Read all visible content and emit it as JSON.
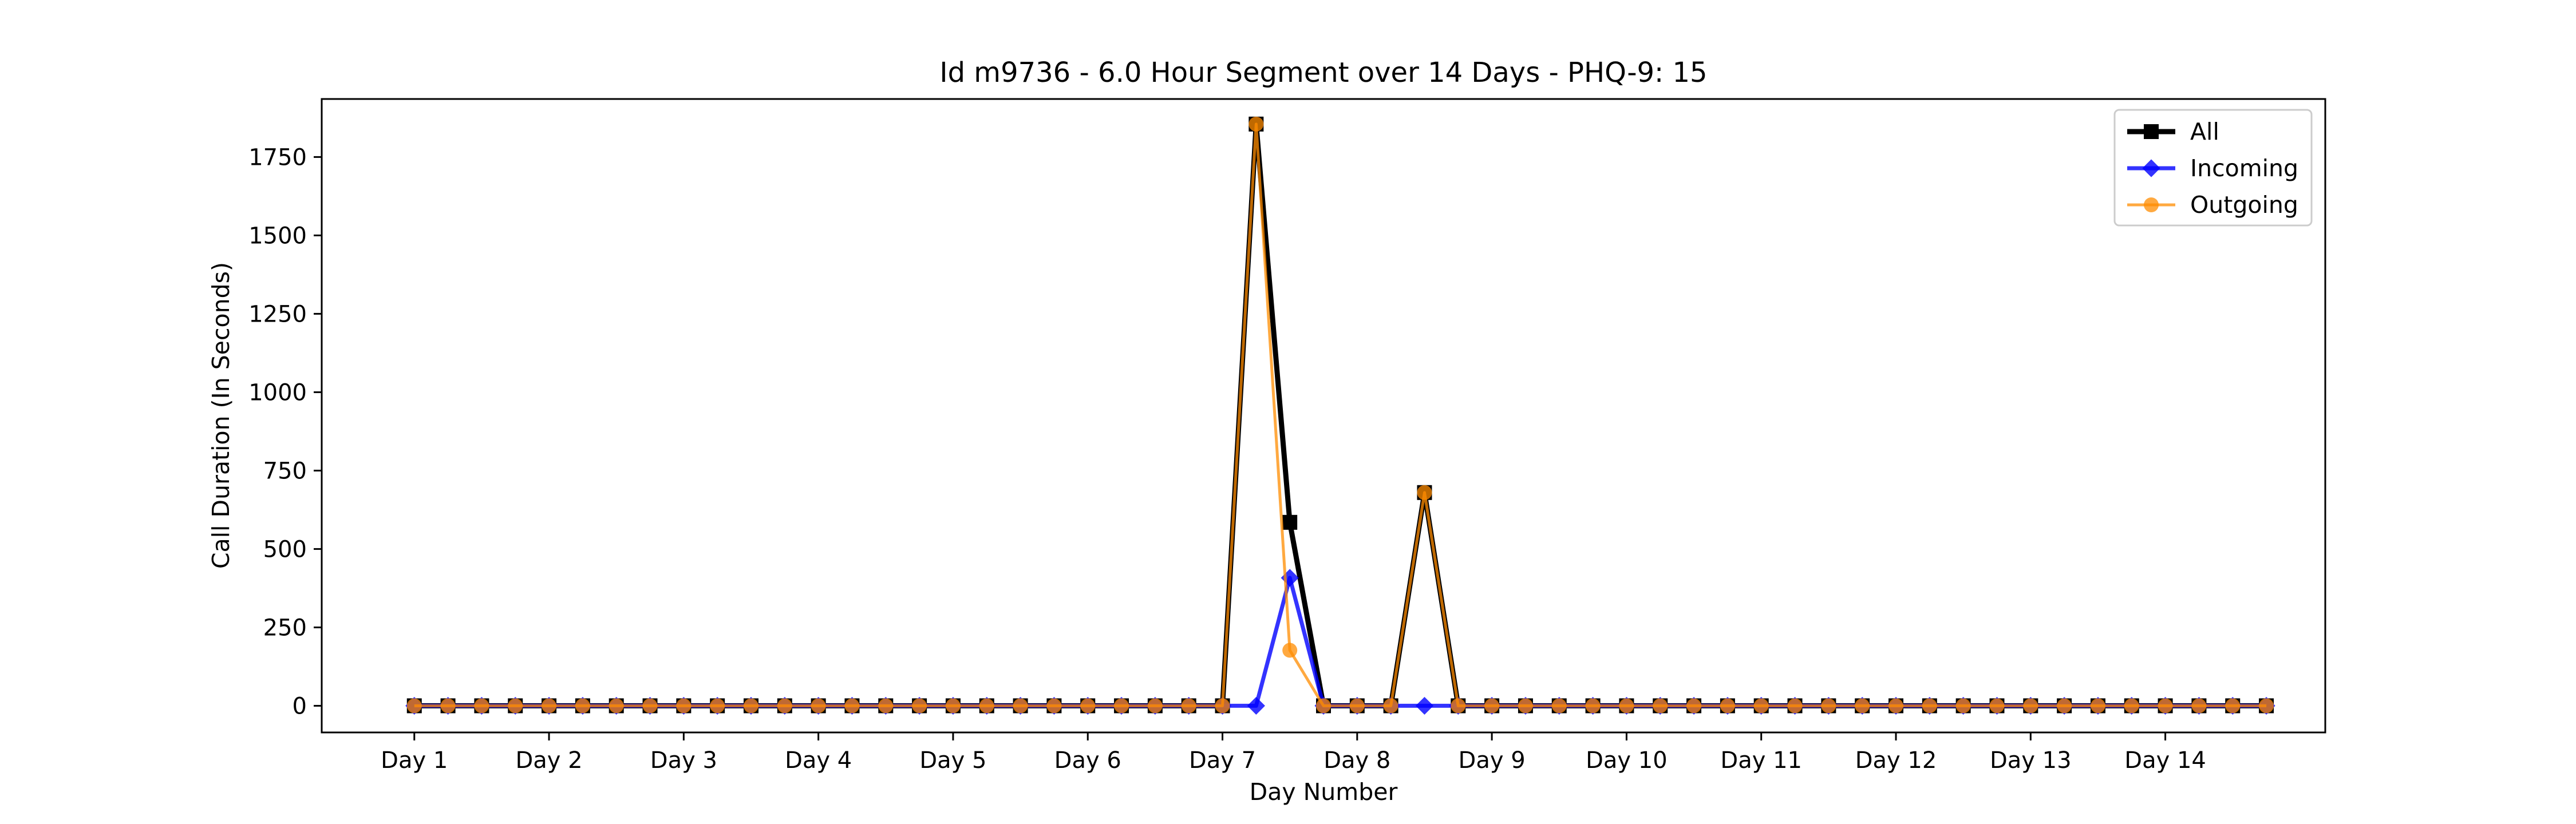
{
  "chart_data": {
    "type": "line",
    "title": "Id m9736 - 6.0 Hour Segment over 14 Days - PHQ-9: 15",
    "xlabel": "Day Number",
    "ylabel": "Call Duration (In Seconds)",
    "ylim": [
      -85,
      1935
    ],
    "yticks": [
      0,
      250,
      500,
      750,
      1000,
      1250,
      1500,
      1750
    ],
    "xlim": [
      -2.75,
      56.75
    ],
    "xticks": [
      0,
      4,
      8,
      12,
      16,
      20,
      24,
      28,
      32,
      36,
      40,
      44,
      48,
      52
    ],
    "xtick_labels": [
      "Day 1",
      "Day 2",
      "Day 3",
      "Day 4",
      "Day 5",
      "Day 6",
      "Day 7",
      "Day 8",
      "Day 9",
      "Day 10",
      "Day 11",
      "Day 12",
      "Day 13",
      "Day 14"
    ],
    "x": [
      0,
      1,
      2,
      3,
      4,
      5,
      6,
      7,
      8,
      9,
      10,
      11,
      12,
      13,
      14,
      15,
      16,
      17,
      18,
      19,
      20,
      21,
      22,
      23,
      24,
      25,
      26,
      27,
      28,
      29,
      30,
      31,
      32,
      33,
      34,
      35,
      36,
      37,
      38,
      39,
      40,
      41,
      42,
      43,
      44,
      45,
      46,
      47,
      48,
      49,
      50,
      51,
      52,
      53,
      54,
      55
    ],
    "legend_position": "top-right",
    "grid": false,
    "series": [
      {
        "name": "All",
        "color": "#000000",
        "marker": "square",
        "values": [
          0,
          0,
          0,
          0,
          0,
          0,
          0,
          0,
          0,
          0,
          0,
          0,
          0,
          0,
          0,
          0,
          0,
          0,
          0,
          0,
          0,
          0,
          0,
          0,
          0,
          1855,
          585,
          0,
          0,
          0,
          680,
          0,
          0,
          0,
          0,
          0,
          0,
          0,
          0,
          0,
          0,
          0,
          0,
          0,
          0,
          0,
          0,
          0,
          0,
          0,
          0,
          0,
          0,
          0,
          0,
          0
        ]
      },
      {
        "name": "Incoming",
        "color": "#0000ff",
        "marker": "diamond",
        "values": [
          0,
          0,
          0,
          0,
          0,
          0,
          0,
          0,
          0,
          0,
          0,
          0,
          0,
          0,
          0,
          0,
          0,
          0,
          0,
          0,
          0,
          0,
          0,
          0,
          0,
          0,
          408,
          0,
          0,
          0,
          0,
          0,
          0,
          0,
          0,
          0,
          0,
          0,
          0,
          0,
          0,
          0,
          0,
          0,
          0,
          0,
          0,
          0,
          0,
          0,
          0,
          0,
          0,
          0,
          0,
          0
        ]
      },
      {
        "name": "Outgoing",
        "color": "#ff8c00",
        "marker": "circle",
        "values": [
          0,
          0,
          0,
          0,
          0,
          0,
          0,
          0,
          0,
          0,
          0,
          0,
          0,
          0,
          0,
          0,
          0,
          0,
          0,
          0,
          0,
          0,
          0,
          0,
          0,
          1855,
          177,
          0,
          0,
          0,
          680,
          0,
          0,
          0,
          0,
          0,
          0,
          0,
          0,
          0,
          0,
          0,
          0,
          0,
          0,
          0,
          0,
          0,
          0,
          0,
          0,
          0,
          0,
          0,
          0,
          0
        ]
      }
    ]
  }
}
